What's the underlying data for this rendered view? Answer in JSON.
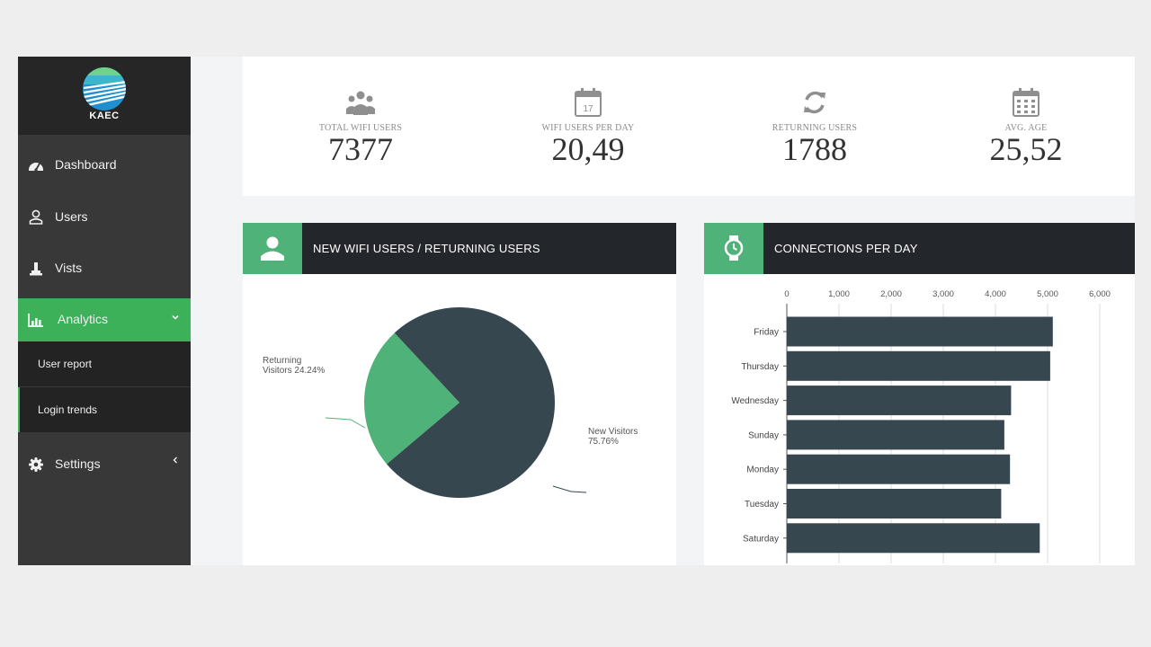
{
  "brand": {
    "name": "KAEC"
  },
  "sidebar": {
    "items": [
      {
        "label": "Dashboard",
        "icon": "dashboard-icon"
      },
      {
        "label": "Users",
        "icon": "user-icon"
      },
      {
        "label": "Vists",
        "icon": "visits-icon"
      },
      {
        "label": "Analytics",
        "icon": "chart-icon",
        "active": true,
        "expanded": true,
        "children": [
          {
            "label": "User report"
          },
          {
            "label": "Login trends"
          }
        ]
      },
      {
        "label": "Settings",
        "icon": "gear-icon",
        "collapsed": true
      }
    ]
  },
  "stats": [
    {
      "label": "TOTAL WIFI USERS",
      "value": "7377",
      "icon": "users-icon"
    },
    {
      "label": "WIFI USERS PER DAY",
      "value": "20,49",
      "icon": "calendar-17-icon"
    },
    {
      "label": "RETURNING USERS",
      "value": "1788",
      "icon": "refresh-icon"
    },
    {
      "label": "AVG. AGE",
      "value": "25,52",
      "icon": "calendar-grid-icon"
    }
  ],
  "panels": {
    "pie": {
      "title": "NEW WIFI USERS / RETURNING USERS",
      "icon": "person-icon"
    },
    "bar": {
      "title": "CONNECTIONS PER DAY",
      "icon": "watch-icon"
    }
  },
  "colors": {
    "accent": "#3cb15a",
    "panel_icon": "#4fb278",
    "dark_series": "#37474f",
    "returning_series": "#4fb278",
    "sidebar": "#383838"
  },
  "chart_data": [
    {
      "type": "pie",
      "slices": [
        {
          "label": "Returning Visitors",
          "text": "Returning Visitors 24.24%",
          "value": 24.24,
          "color": "#4fb278"
        },
        {
          "label": "New Visitors",
          "text": "New Visitors 75.76%",
          "value": 75.76,
          "color": "#37474f"
        }
      ]
    },
    {
      "type": "bar",
      "orientation": "horizontal",
      "categories": [
        "Friday",
        "Thursday",
        "Wednesday",
        "Sunday",
        "Monday",
        "Tuesday",
        "Saturday"
      ],
      "values": [
        5100,
        5050,
        4300,
        4170,
        4280,
        4110,
        4850
      ],
      "xlim": [
        0,
        6000
      ],
      "xticks": [
        "0",
        "1,000",
        "2,000",
        "3,000",
        "4,000",
        "5,000",
        "6,000"
      ],
      "grid": true,
      "color": "#37474f"
    }
  ]
}
